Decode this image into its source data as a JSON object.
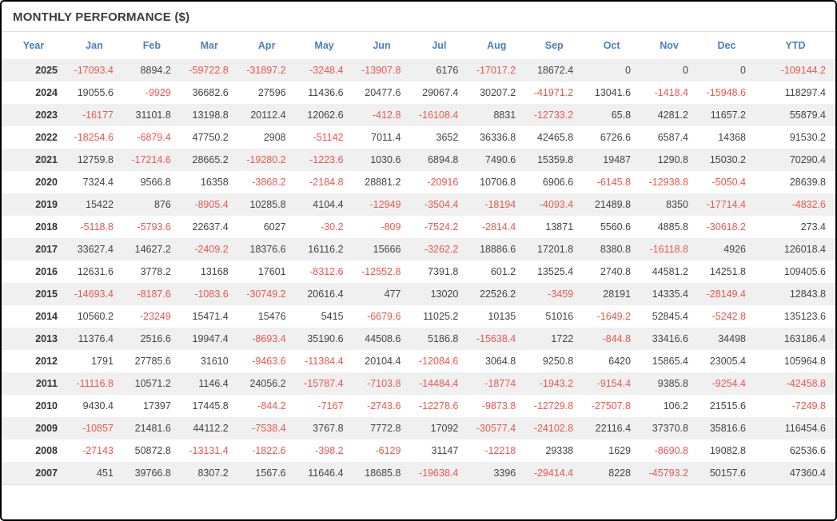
{
  "colors": {
    "header_blue": "#4d7fbb",
    "negative_red": "#e9574f",
    "positive_dark": "#444444",
    "title_dark": "#3b3b3b",
    "row_stripe": "#f0f0f0",
    "outer_border": "#000000"
  },
  "chart_data": {
    "type": "table",
    "title": "MONTHLY PERFORMANCE ($)",
    "columns": [
      "Year",
      "Jan",
      "Feb",
      "Mar",
      "Apr",
      "May",
      "Jun",
      "Jul",
      "Aug",
      "Sep",
      "Oct",
      "Nov",
      "Dec",
      "YTD"
    ],
    "rows": [
      {
        "year": "2025",
        "values": [
          "-17093.4",
          "8894.2",
          "-59722.8",
          "-31897.2",
          "-3248.4",
          "-13907.8",
          "6176",
          "-17017.2",
          "18672.4",
          "0",
          "0",
          "0",
          "-109144.2"
        ]
      },
      {
        "year": "2024",
        "values": [
          "19055.6",
          "-9929",
          "36682.6",
          "27596",
          "11436.6",
          "20477.6",
          "29067.4",
          "30207.2",
          "-41971.2",
          "13041.6",
          "-1418.4",
          "-15948.6",
          "118297.4"
        ]
      },
      {
        "year": "2023",
        "values": [
          "-16177",
          "31101.8",
          "13198.8",
          "20112.4",
          "12062.6",
          "-412.8",
          "-16108.4",
          "8831",
          "-12733.2",
          "65.8",
          "4281.2",
          "11657.2",
          "55879.4"
        ]
      },
      {
        "year": "2022",
        "values": [
          "-18254.6",
          "-6879.4",
          "47750.2",
          "2908",
          "-51142",
          "7011.4",
          "3652",
          "36336.8",
          "42465.8",
          "6726.6",
          "6587.4",
          "14368",
          "91530.2"
        ]
      },
      {
        "year": "2021",
        "values": [
          "12759.8",
          "-17214.6",
          "28665.2",
          "-19280.2",
          "-1223.6",
          "1030.6",
          "6894.8",
          "7490.6",
          "15359.8",
          "19487",
          "1290.8",
          "15030.2",
          "70290.4"
        ]
      },
      {
        "year": "2020",
        "values": [
          "7324.4",
          "9566.8",
          "16358",
          "-3868.2",
          "-2184.8",
          "28881.2",
          "-20916",
          "10706.8",
          "6906.6",
          "-6145.8",
          "-12938.8",
          "-5050.4",
          "28639.8"
        ]
      },
      {
        "year": "2019",
        "values": [
          "15422",
          "876",
          "-8905.4",
          "10285.8",
          "4104.4",
          "-12949",
          "-3504.4",
          "-18194",
          "-4093.4",
          "21489.8",
          "8350",
          "-17714.4",
          "-4832.6"
        ]
      },
      {
        "year": "2018",
        "values": [
          "-5118.8",
          "-5793.6",
          "22637.4",
          "6027",
          "-30.2",
          "-809",
          "-7524.2",
          "-2814.4",
          "13871",
          "5560.6",
          "4885.8",
          "-30618.2",
          "273.4"
        ]
      },
      {
        "year": "2017",
        "values": [
          "33627.4",
          "14627.2",
          "-2409.2",
          "18376.6",
          "16116.2",
          "15666",
          "-3262.2",
          "18886.6",
          "17201.8",
          "8380.8",
          "-16118.8",
          "4926",
          "126018.4"
        ]
      },
      {
        "year": "2016",
        "values": [
          "12631.6",
          "3778.2",
          "13168",
          "17601",
          "-8312.6",
          "-12552.8",
          "7391.8",
          "601.2",
          "13525.4",
          "2740.8",
          "44581.2",
          "14251.8",
          "109405.6"
        ]
      },
      {
        "year": "2015",
        "values": [
          "-14693.4",
          "-8187.6",
          "-1083.6",
          "-30749.2",
          "20616.4",
          "477",
          "13020",
          "22526.2",
          "-3459",
          "28191",
          "14335.4",
          "-28149.4",
          "12843.8"
        ]
      },
      {
        "year": "2014",
        "values": [
          "10560.2",
          "-23249",
          "15471.4",
          "15476",
          "5415",
          "-6679.6",
          "11025.2",
          "10135",
          "51016",
          "-1649.2",
          "52845.4",
          "-5242.8",
          "135123.6"
        ]
      },
      {
        "year": "2013",
        "values": [
          "11376.4",
          "2516.6",
          "19947.4",
          "-8693.4",
          "35190.6",
          "44508.6",
          "5186.8",
          "-15638.4",
          "1722",
          "-844.8",
          "33416.6",
          "34498",
          "163186.4"
        ]
      },
      {
        "year": "2012",
        "values": [
          "1791",
          "27785.6",
          "31610",
          "-9463.6",
          "-11384.4",
          "20104.4",
          "-12084.6",
          "3064.8",
          "9250.8",
          "6420",
          "15865.4",
          "23005.4",
          "105964.8"
        ]
      },
      {
        "year": "2011",
        "values": [
          "-11116.8",
          "10571.2",
          "1146.4",
          "24056.2",
          "-15787.4",
          "-7103.8",
          "-14484.4",
          "-18774",
          "-1943.2",
          "-9154.4",
          "9385.8",
          "-9254.4",
          "-42458.8"
        ]
      },
      {
        "year": "2010",
        "values": [
          "9430.4",
          "17397",
          "17445.8",
          "-844.2",
          "-7167",
          "-2743.6",
          "-12278.6",
          "-9873.8",
          "-12729.8",
          "-27507.8",
          "106.2",
          "21515.6",
          "-7249.8"
        ]
      },
      {
        "year": "2009",
        "values": [
          "-10857",
          "21481.6",
          "44112.2",
          "-7538.4",
          "3767.8",
          "7772.8",
          "17092",
          "-30577.4",
          "-24102.8",
          "22116.4",
          "37370.8",
          "35816.6",
          "116454.6"
        ]
      },
      {
        "year": "2008",
        "values": [
          "-27143",
          "50872.8",
          "-13131.4",
          "-1822.6",
          "-398.2",
          "-6129",
          "31147",
          "-12218",
          "29338",
          "1629",
          "-8690.8",
          "19082.8",
          "62536.6"
        ]
      },
      {
        "year": "2007",
        "values": [
          "451",
          "39766.8",
          "8307.2",
          "1567.6",
          "11646.4",
          "18685.8",
          "-19638.4",
          "3396",
          "-29414.4",
          "8228",
          "-45793.2",
          "50157.6",
          "47360.4"
        ]
      }
    ]
  }
}
